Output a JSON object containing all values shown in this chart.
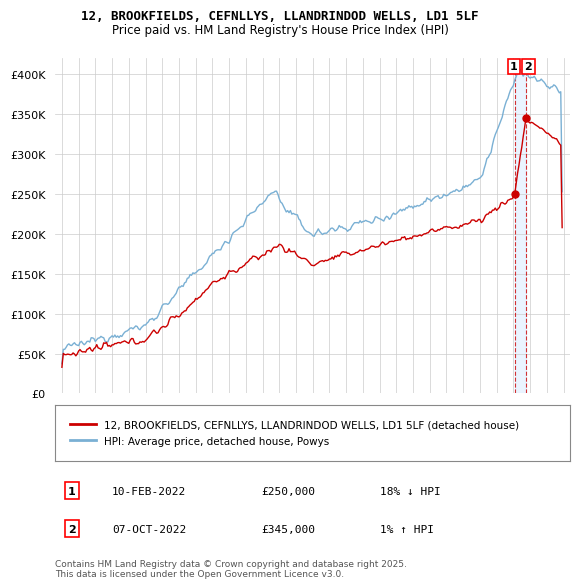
{
  "title_line1": "12, BROOKFIELDS, CEFNLLYS, LLANDRINDOD WELLS, LD1 5LF",
  "title_line2": "Price paid vs. HM Land Registry's House Price Index (HPI)",
  "hpi_color": "#7ab0d4",
  "price_color": "#cc0000",
  "sale1_date": "10-FEB-2022",
  "sale1_price": "£250,000",
  "sale1_hpi": "18% ↓ HPI",
  "sale2_date": "07-OCT-2022",
  "sale2_price": "£345,000",
  "sale2_hpi": "1% ↑ HPI",
  "legend_line1": "12, BROOKFIELDS, CEFNLLYS, LLANDRINDOD WELLS, LD1 5LF (detached house)",
  "legend_line2": "HPI: Average price, detached house, Powys",
  "footer": "Contains HM Land Registry data © Crown copyright and database right 2025.\nThis data is licensed under the Open Government Licence v3.0.",
  "ylim": [
    0,
    420000
  ],
  "yticks": [
    0,
    50000,
    100000,
    150000,
    200000,
    250000,
    300000,
    350000,
    400000
  ],
  "background_color": "#ffffff",
  "grid_color": "#cccccc",
  "sale1_t": 2022.08,
  "sale2_t": 2022.75,
  "sale1_price_val": 250000,
  "sale2_price_val": 345000
}
